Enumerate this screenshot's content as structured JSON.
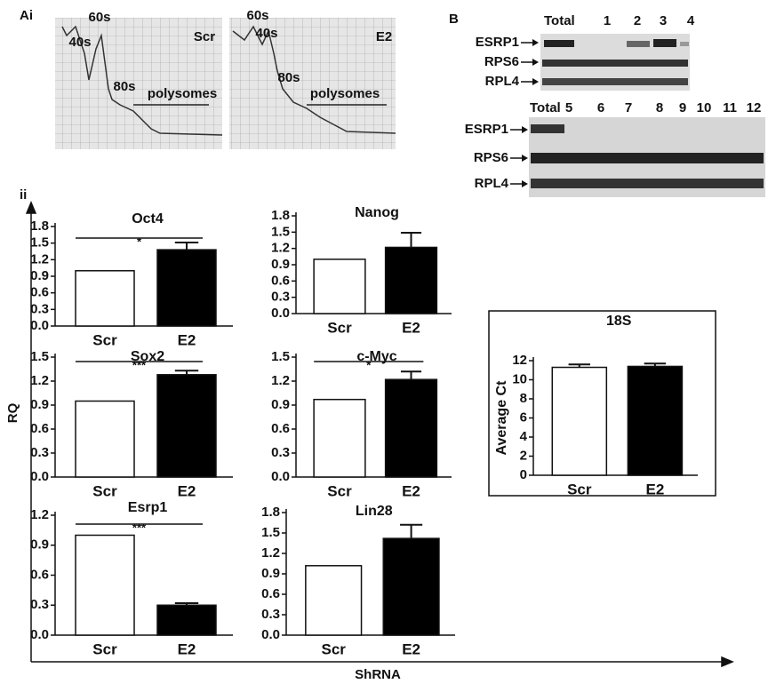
{
  "figure": {
    "panel_ai": "Ai",
    "panel_ii": "ii",
    "panel_b": "B",
    "y_label": "RQ",
    "x_label": "ShRNA"
  },
  "traces": [
    {
      "condition": "Scr",
      "peaks": [
        "40s",
        "60s",
        "80s"
      ],
      "region": "polysomes"
    },
    {
      "condition": "E2",
      "peaks": [
        "40s",
        "60s",
        "80s"
      ],
      "region": "polysomes"
    }
  ],
  "blots": [
    {
      "lanes": [
        "Total",
        "1",
        "2",
        "3",
        "4"
      ],
      "proteins": [
        "ESRP1",
        "RPS6",
        "RPL4"
      ]
    },
    {
      "lanes": [
        "Total",
        "5",
        "6",
        "7",
        "8",
        "9",
        "10",
        "11",
        "12"
      ],
      "proteins": [
        "ESRP1",
        "RPS6",
        "RPL4"
      ]
    }
  ],
  "chart_data": [
    {
      "type": "bar",
      "title": "Oct4",
      "categories": [
        "Scr",
        "E2"
      ],
      "values": [
        1.0,
        1.38
      ],
      "errors": [
        0,
        0.13
      ],
      "colors": [
        "#ffffff",
        "#000000"
      ],
      "significance": "*",
      "ylim": [
        0,
        1.8
      ],
      "yticks": [
        {
          "value": 0,
          "label": "0.0"
        },
        {
          "value": 0.3,
          "label": "0.3"
        },
        {
          "value": 0.6,
          "label": "0.6"
        },
        {
          "value": 0.9,
          "label": "0.9"
        },
        {
          "value": 1.2,
          "label": "1.2"
        },
        {
          "value": 1.5,
          "label": "1.5"
        },
        {
          "value": 1.8,
          "label": "1.8"
        }
      ]
    },
    {
      "type": "bar",
      "title": "Nanog",
      "categories": [
        "Scr",
        "E2"
      ],
      "values": [
        1.0,
        1.22
      ],
      "errors": [
        0,
        0.27
      ],
      "colors": [
        "#ffffff",
        "#000000"
      ],
      "ylim": [
        0,
        1.8
      ],
      "yticks": [
        {
          "value": 0,
          "label": "0.0"
        },
        {
          "value": 0.3,
          "label": "0.3"
        },
        {
          "value": 0.6,
          "label": "0.6"
        },
        {
          "value": 0.9,
          "label": "0.9"
        },
        {
          "value": 1.2,
          "label": "1.2"
        },
        {
          "value": 1.5,
          "label": "1.5"
        },
        {
          "value": 1.8,
          "label": "1.8"
        }
      ]
    },
    {
      "type": "bar",
      "title": "Sox2",
      "categories": [
        "Scr",
        "E2"
      ],
      "values": [
        0.95,
        1.28
      ],
      "errors": [
        0,
        0.05
      ],
      "colors": [
        "#ffffff",
        "#000000"
      ],
      "significance": "***",
      "ylim": [
        0,
        1.5
      ],
      "yticks": [
        {
          "value": 0,
          "label": "0.0"
        },
        {
          "value": 0.3,
          "label": "0.3"
        },
        {
          "value": 0.6,
          "label": "0.6"
        },
        {
          "value": 0.9,
          "label": "0.9"
        },
        {
          "value": 1.2,
          "label": "1.2"
        },
        {
          "value": 1.5,
          "label": "1.5"
        }
      ]
    },
    {
      "type": "bar",
      "title": "c-Myc",
      "categories": [
        "Scr",
        "E2"
      ],
      "values": [
        0.97,
        1.22
      ],
      "errors": [
        0,
        0.1
      ],
      "colors": [
        "#ffffff",
        "#000000"
      ],
      "significance": "*",
      "ylim": [
        0,
        1.5
      ],
      "yticks": [
        {
          "value": 0,
          "label": "0.0"
        },
        {
          "value": 0.3,
          "label": "0.3"
        },
        {
          "value": 0.6,
          "label": "0.6"
        },
        {
          "value": 0.9,
          "label": "0.9"
        },
        {
          "value": 1.2,
          "label": "1.2"
        },
        {
          "value": 1.5,
          "label": "1.5"
        }
      ]
    },
    {
      "type": "bar",
      "title": "Esrp1",
      "categories": [
        "Scr",
        "E2"
      ],
      "values": [
        1.0,
        0.3
      ],
      "errors": [
        0,
        0.02
      ],
      "colors": [
        "#ffffff",
        "#000000"
      ],
      "significance": "***",
      "ylim": [
        0,
        1.2
      ],
      "yticks": [
        {
          "value": 0,
          "label": "0.0"
        },
        {
          "value": 0.3,
          "label": "0.3"
        },
        {
          "value": 0.6,
          "label": "0.6"
        },
        {
          "value": 0.9,
          "label": "0.9"
        },
        {
          "value": 1.2,
          "label": "1.2"
        }
      ]
    },
    {
      "type": "bar",
      "title": "Lin28",
      "categories": [
        "Scr",
        "E2"
      ],
      "values": [
        1.02,
        1.42
      ],
      "errors": [
        0,
        0.2
      ],
      "colors": [
        "#ffffff",
        "#000000"
      ],
      "ylim": [
        0,
        1.8
      ],
      "yticks": [
        {
          "value": 0,
          "label": "0.0"
        },
        {
          "value": 0.3,
          "label": "0.3"
        },
        {
          "value": 0.6,
          "label": "0.6"
        },
        {
          "value": 0.9,
          "label": "0.9"
        },
        {
          "value": 1.2,
          "label": "1.2"
        },
        {
          "value": 1.5,
          "label": "1.5"
        },
        {
          "value": 1.8,
          "label": "1.8"
        }
      ]
    },
    {
      "type": "bar",
      "title": "18S",
      "ylabel": "Average Ct",
      "categories": [
        "Scr",
        "E2"
      ],
      "values": [
        11.3,
        11.4
      ],
      "errors": [
        0.3,
        0.3
      ],
      "colors": [
        "#ffffff",
        "#000000"
      ],
      "ylim": [
        0,
        12
      ],
      "yticks": [
        0,
        2,
        4,
        6,
        8,
        10,
        12
      ]
    }
  ]
}
